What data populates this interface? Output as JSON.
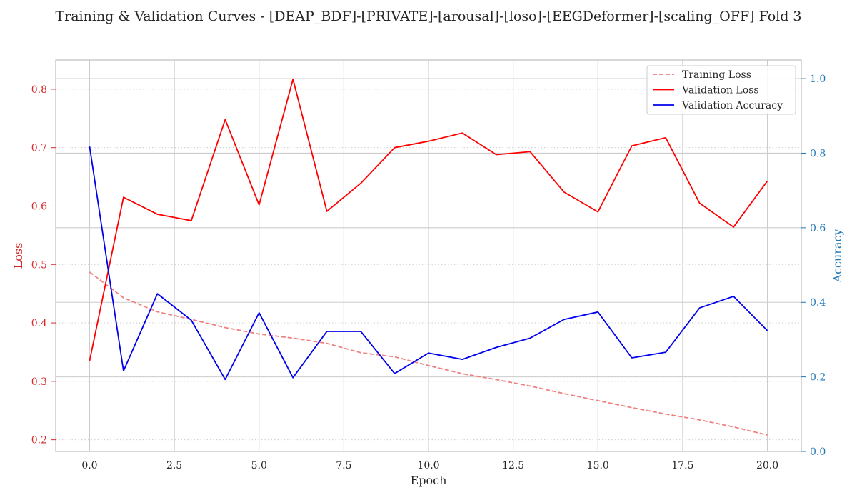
{
  "chart_data": {
    "type": "line",
    "title": "Training & Validation Curves - [DEAP_BDF]-[PRIVATE]-[arousal]-[loso]-[EEGDeformer]-[scaling_OFF] Fold 3",
    "xlabel": "Epoch",
    "ylabel_left": "Loss",
    "ylabel_right": "Accuracy",
    "xlim": [
      -1,
      21
    ],
    "ylim_left": [
      0.18,
      0.85
    ],
    "ylim_right": [
      0.0,
      1.05
    ],
    "xticks": [
      "0.0",
      "2.5",
      "5.0",
      "7.5",
      "10.0",
      "12.5",
      "15.0",
      "17.5",
      "20.0"
    ],
    "yticks_left": [
      "0.2",
      "0.3",
      "0.4",
      "0.5",
      "0.6",
      "0.7",
      "0.8"
    ],
    "yticks_right": [
      "0.0",
      "0.2",
      "0.4",
      "0.6",
      "0.8",
      "1.0"
    ],
    "grid": true,
    "legend_position": "top-right",
    "x": [
      0,
      1,
      2,
      3,
      4,
      5,
      6,
      7,
      8,
      9,
      10,
      11,
      12,
      13,
      14,
      15,
      16,
      17,
      18,
      19,
      20
    ],
    "series": [
      {
        "name": "Training Loss",
        "axis": "left",
        "style": "dashed",
        "color": "#f08080",
        "values": [
          0.487,
          0.443,
          0.419,
          0.406,
          0.392,
          0.381,
          0.374,
          0.365,
          0.349,
          0.342,
          0.327,
          0.313,
          0.303,
          0.292,
          0.279,
          0.267,
          0.255,
          0.244,
          0.234,
          0.222,
          0.208
        ]
      },
      {
        "name": "Validation Loss",
        "axis": "left",
        "style": "solid",
        "color": "#ff0000",
        "values": [
          0.335,
          0.615,
          0.586,
          0.575,
          0.748,
          0.602,
          0.817,
          0.591,
          0.639,
          0.7,
          0.711,
          0.725,
          0.688,
          0.693,
          0.624,
          0.59,
          0.703,
          0.717,
          0.605,
          0.564,
          0.643
        ]
      },
      {
        "name": "Validation Accuracy",
        "axis": "right",
        "style": "solid",
        "color": "#0000ee",
        "values": [
          0.818,
          0.216,
          0.423,
          0.352,
          0.193,
          0.372,
          0.198,
          0.322,
          0.322,
          0.209,
          0.264,
          0.247,
          0.279,
          0.304,
          0.354,
          0.374,
          0.251,
          0.266,
          0.385,
          0.416,
          0.324
        ]
      }
    ],
    "colors": {
      "left_axis": "#d62728",
      "right_axis": "#1f77b4",
      "text": "#262626",
      "grid": "#cccccc",
      "spine": "#bfbfbf"
    }
  }
}
